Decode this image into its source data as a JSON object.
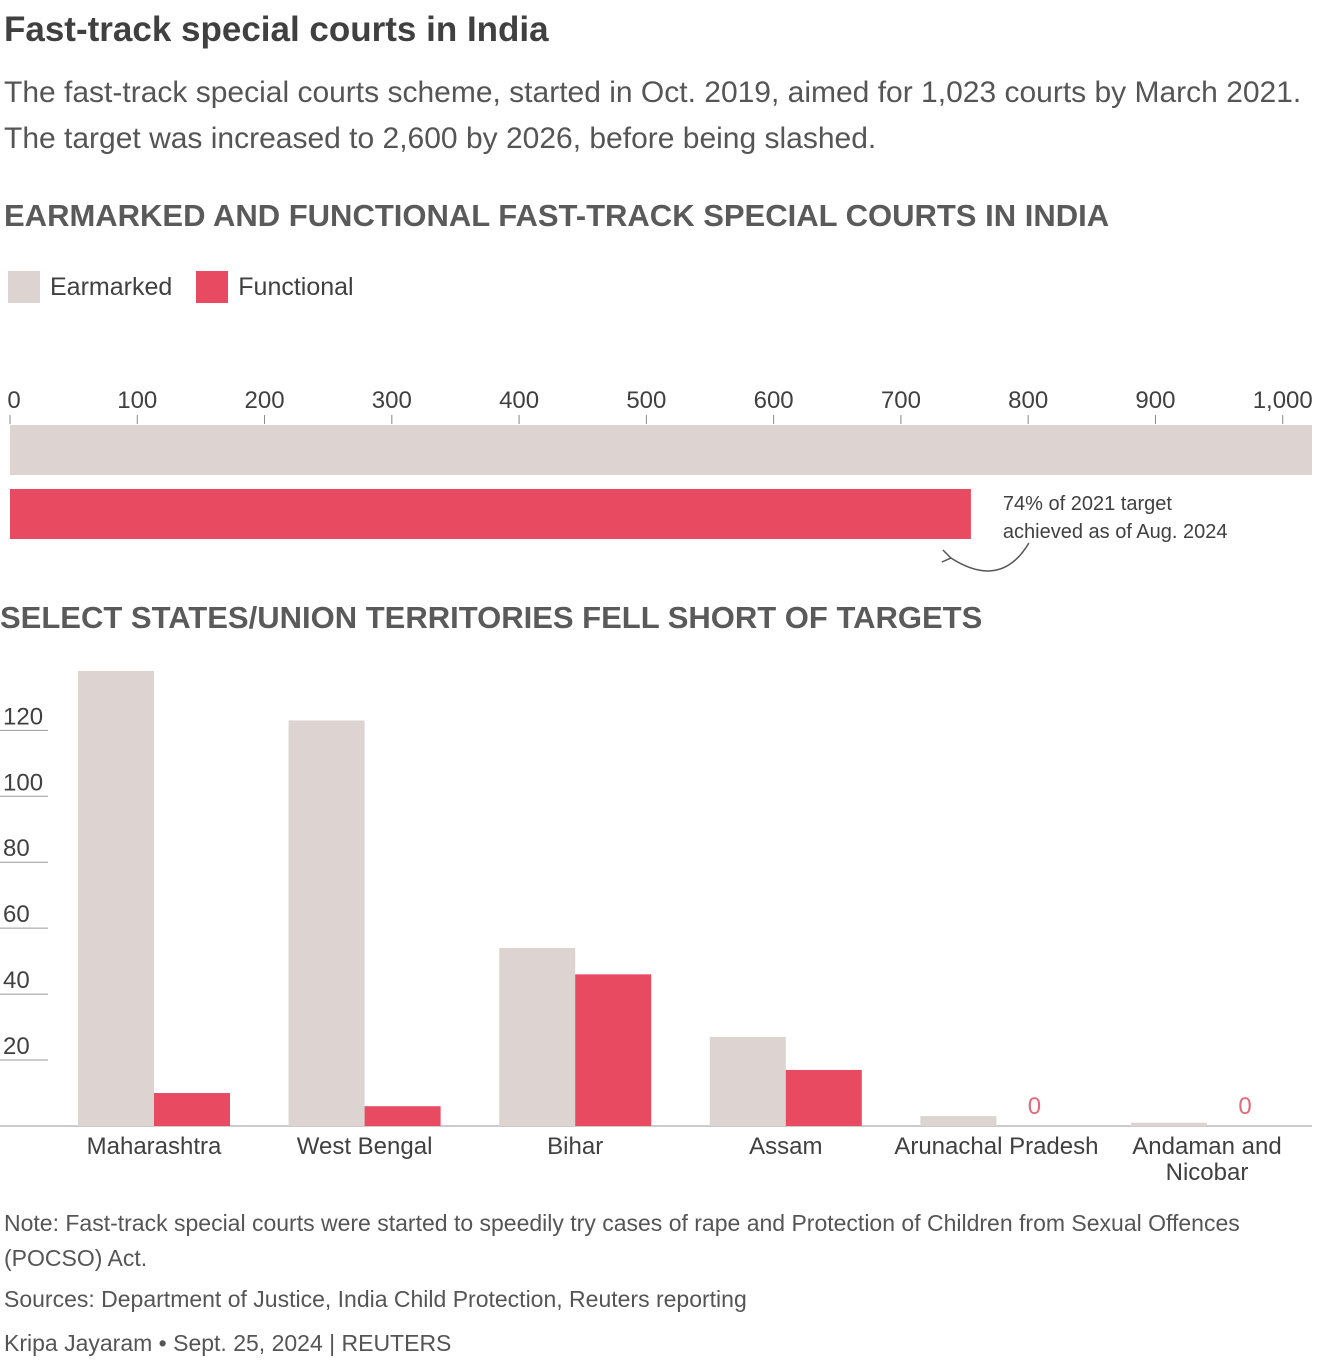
{
  "header": {
    "title": "Fast-track special courts in India",
    "subtitle": "The fast-track special courts scheme, started in Oct. 2019, aimed for 1,023 courts by March 2021. The target was increased to 2,600 by 2026, before being slashed."
  },
  "legend": {
    "earmarked_label": "Earmarked",
    "functional_label": "Functional"
  },
  "colors": {
    "earmarked": "#ddd3d1",
    "functional": "#e84a61",
    "zero_label": "#e06a7c"
  },
  "chart_data": [
    {
      "type": "bar",
      "orientation": "horizontal",
      "title": "EARMARKED AND FUNCTIONAL FAST-TRACK SPECIAL COURTS IN INDIA",
      "series": [
        {
          "name": "Earmarked",
          "values": [
            1023
          ]
        },
        {
          "name": "Functional",
          "values": [
            755
          ]
        }
      ],
      "xlim": [
        0,
        1023
      ],
      "ticks": [
        0,
        100,
        200,
        300,
        400,
        500,
        600,
        700,
        800,
        900,
        1000
      ],
      "tick_labels": [
        "0",
        "100",
        "200",
        "300",
        "400",
        "500",
        "600",
        "700",
        "800",
        "900",
        "1,000"
      ],
      "annotation_line1": "74% of 2021 target",
      "annotation_line2": "achieved as of Aug. 2024"
    },
    {
      "type": "bar",
      "orientation": "vertical",
      "title": "SELECT STATES/UNION TERRITORIES FELL SHORT OF TARGETS",
      "categories": [
        "Maharashtra",
        "West Bengal",
        "Bihar",
        "Assam",
        "Arunachal Pradesh",
        "Andaman and Nicobar"
      ],
      "category_lines": [
        [
          "Maharashtra"
        ],
        [
          "West Bengal"
        ],
        [
          "Bihar"
        ],
        [
          "Assam"
        ],
        [
          "Arunachal Pradesh"
        ],
        [
          "Andaman and",
          "Nicobar"
        ]
      ],
      "series": [
        {
          "name": "Earmarked",
          "values": [
            138,
            123,
            54,
            27,
            3,
            1
          ]
        },
        {
          "name": "Functional",
          "values": [
            10,
            6,
            46,
            17,
            0,
            0
          ]
        }
      ],
      "zero_label": "0",
      "ylim": [
        0,
        138
      ],
      "yticks": [
        20,
        40,
        60,
        80,
        100,
        120
      ],
      "ytick_labels": [
        "20",
        "40",
        "60",
        "80",
        "100",
        "120"
      ]
    }
  ],
  "footer": {
    "note": "Note: Fast-track special courts were started to speedily try cases of rape and Protection of Children from Sexual Offences (POCSO) Act.",
    "sources": "Sources: Department of Justice, India Child Protection, Reuters reporting",
    "credit": "Kripa Jayaram • Sept. 25, 2024 | REUTERS"
  }
}
